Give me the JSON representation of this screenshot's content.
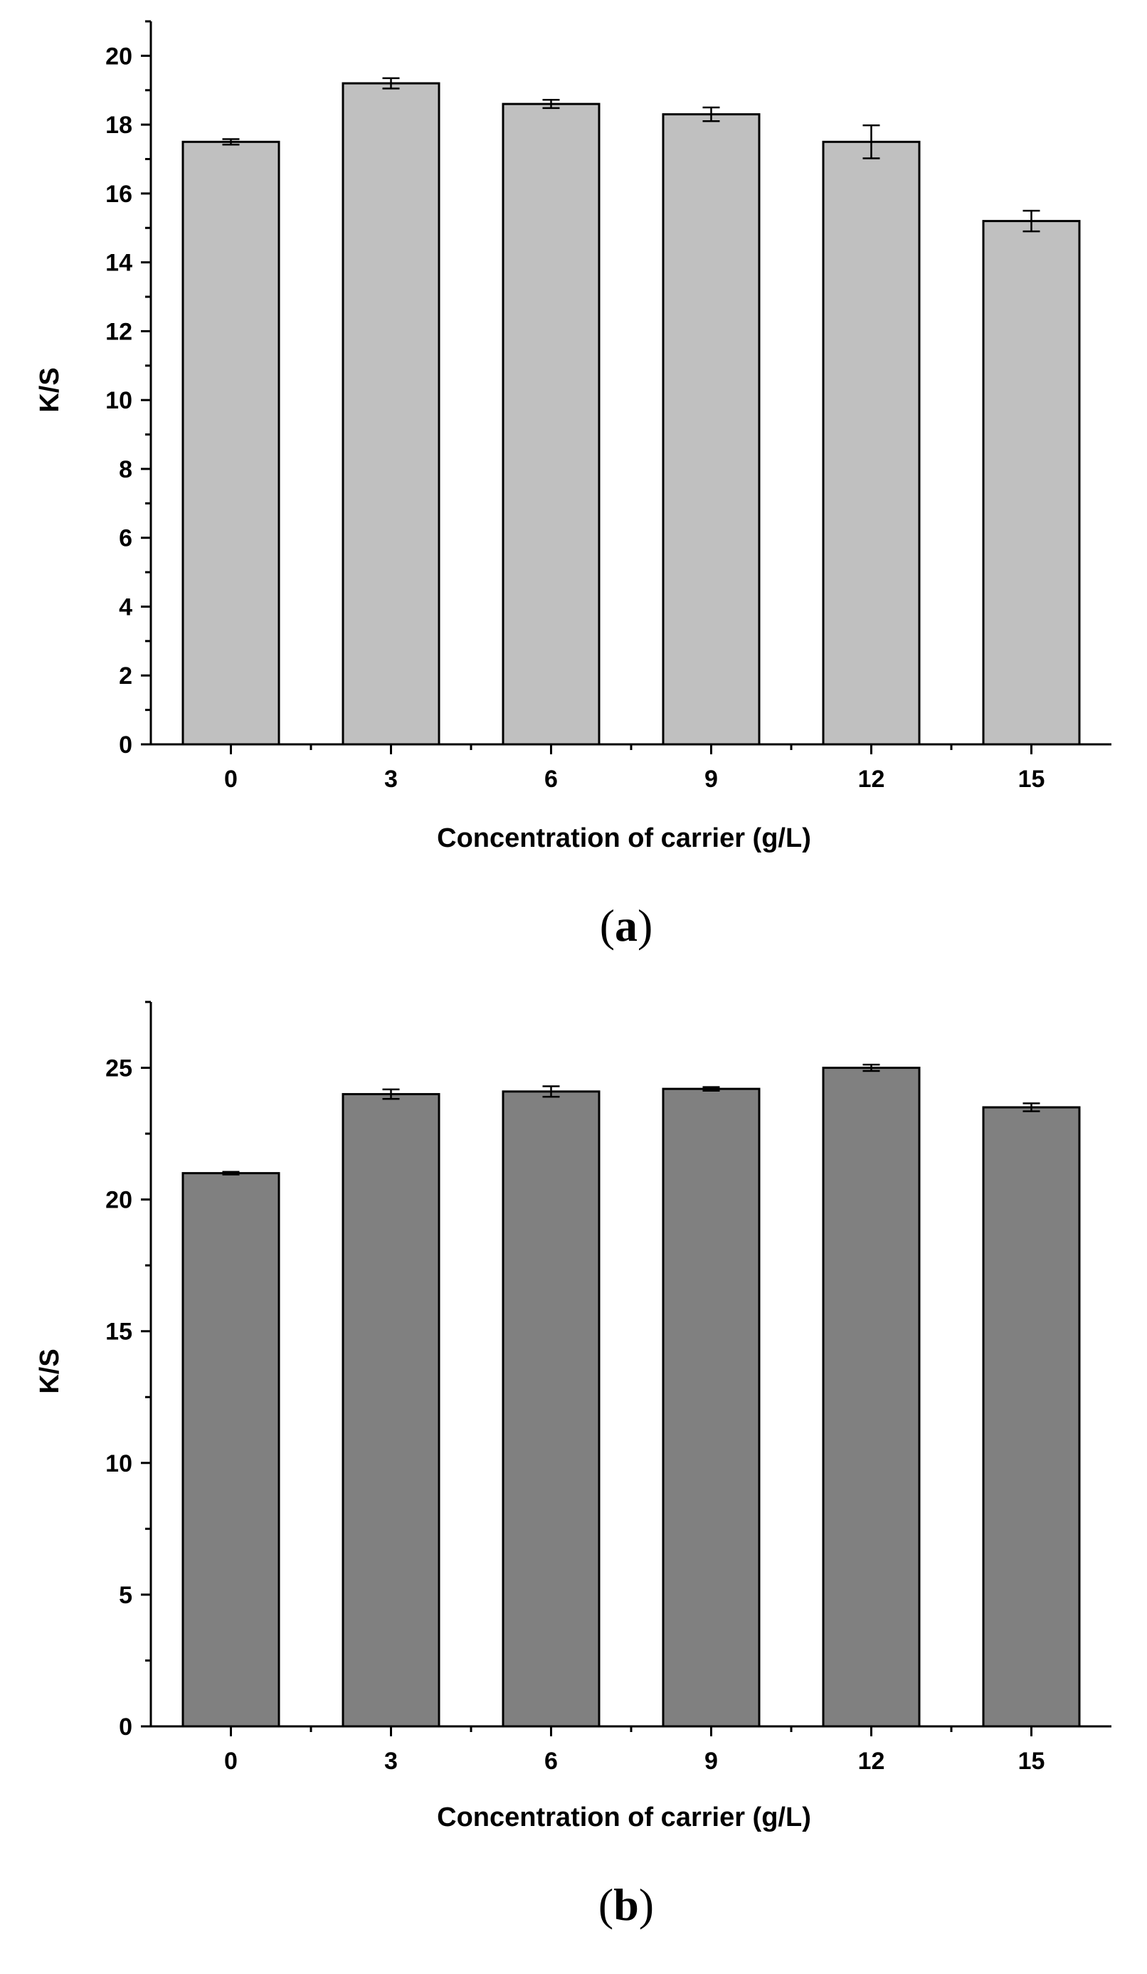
{
  "chart_data": [
    {
      "type": "bar",
      "panel_label": "a",
      "categories": [
        "0",
        "3",
        "6",
        "9",
        "12",
        "15"
      ],
      "values": [
        17.5,
        19.2,
        18.6,
        18.3,
        17.5,
        15.2
      ],
      "errors": [
        0.08,
        0.15,
        0.12,
        0.2,
        0.48,
        0.3
      ],
      "xlabel": "Concentration of carrier (g/L)",
      "ylabel": "K/S",
      "ylim": [
        0,
        21
      ],
      "yticks": [
        0,
        2,
        4,
        6,
        8,
        10,
        12,
        14,
        16,
        18,
        20
      ],
      "bar_color": "#c0c0c0",
      "grid": false
    },
    {
      "type": "bar",
      "panel_label": "b",
      "categories": [
        "0",
        "3",
        "6",
        "9",
        "12",
        "15"
      ],
      "values": [
        21.0,
        24.0,
        24.1,
        24.2,
        25.0,
        23.5
      ],
      "errors": [
        0.05,
        0.18,
        0.2,
        0.07,
        0.12,
        0.15
      ],
      "xlabel": "Concentration of carrier (g/L)",
      "ylabel": "K/S",
      "ylim": [
        0,
        27.5
      ],
      "yticks": [
        0,
        5,
        10,
        15,
        20,
        25
      ],
      "bar_color": "#808080",
      "grid": false
    }
  ]
}
